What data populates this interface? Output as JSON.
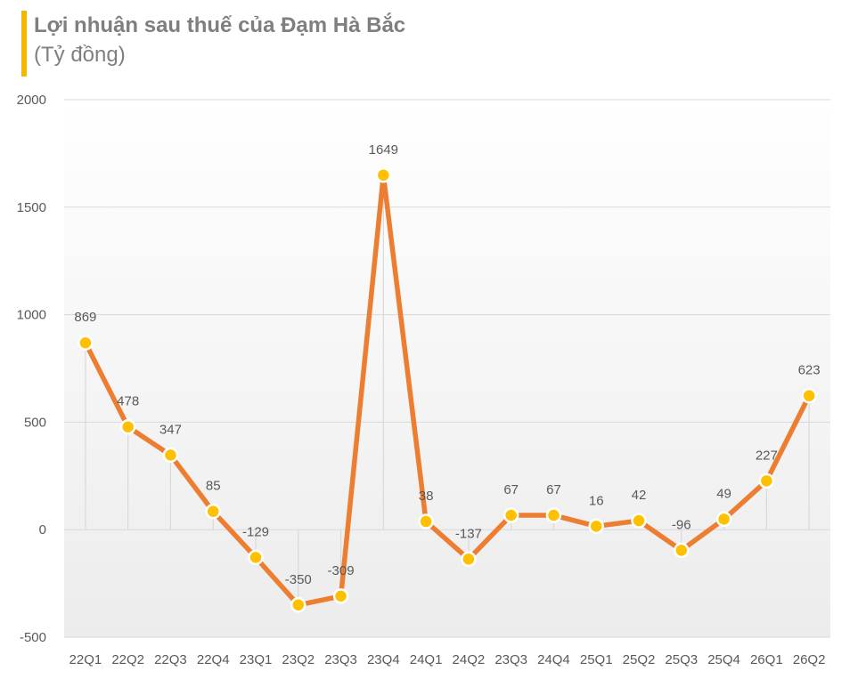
{
  "chart_data": {
    "type": "line",
    "title": "Lợi nhuận sau thuế của Đạm Hà Bắc",
    "subtitle": "(Tỷ đồng)",
    "categories": [
      "22Q1",
      "22Q2",
      "22Q3",
      "22Q4",
      "23Q1",
      "23Q2",
      "23Q3",
      "23Q4",
      "24Q1",
      "24Q2",
      "23Q3",
      "24Q4",
      "25Q1",
      "25Q2",
      "25Q3",
      "25Q4",
      "26Q1",
      "26Q2"
    ],
    "series": [
      {
        "values": [
          869,
          478,
          347,
          85,
          -129,
          -350,
          -309,
          1649,
          38,
          -137,
          67,
          67,
          16,
          42,
          -96,
          49,
          227,
          623
        ],
        "labels": [
          "869",
          "478",
          "347",
          "85",
          "-129",
          "-350",
          "-309",
          "1649",
          "38",
          "-137",
          "67",
          "67",
          "16",
          "42",
          "-96",
          "49",
          "227",
          "623"
        ]
      }
    ],
    "y_ticks": [
      "2000",
      "1500",
      "1000",
      "500",
      "0",
      "-500"
    ],
    "y_tick_values": [
      2000,
      1500,
      1000,
      500,
      0,
      -500
    ],
    "ylim": [
      -500,
      2000
    ],
    "grid": true,
    "legend": "none",
    "colors": {
      "line": "#ed7d31",
      "marker": "#ffc000",
      "marker_edge": "#ffffff",
      "grid": "#d9d9d9",
      "drop_line": "#d9d9d9",
      "accent_bar": "#f2b705"
    }
  }
}
